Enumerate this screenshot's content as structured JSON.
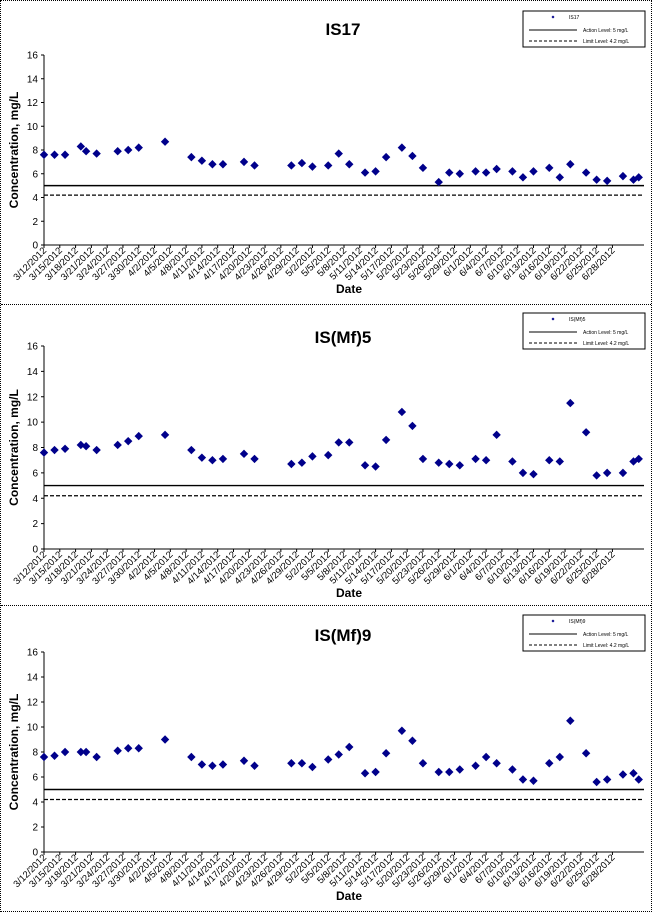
{
  "chart_data": [
    {
      "type": "scatter",
      "title": "IS17",
      "xlabel": "Date",
      "ylabel": "Concentration, mg/L",
      "ylim": [
        0,
        16
      ],
      "yticks": [
        "0",
        "2",
        "4",
        "6",
        "8",
        "10",
        "12",
        "14",
        "16"
      ],
      "xticks": [
        "3/12/2012",
        "3/15/2012",
        "3/18/2012",
        "3/21/2012",
        "3/24/2012",
        "3/27/2012",
        "3/30/2012",
        "4/2/2012",
        "4/5/2012",
        "4/8/2012",
        "4/11/2012",
        "4/14/2012",
        "4/17/2012",
        "4/20/2012",
        "4/23/2012",
        "4/26/2012",
        "4/29/2012",
        "5/2/2012",
        "5/5/2012",
        "5/8/2012",
        "5/11/2012",
        "5/14/2012",
        "5/17/2012",
        "5/20/2012",
        "5/23/2012",
        "5/26/2012",
        "5/29/2012",
        "6/1/2012",
        "6/4/2012",
        "6/7/2012",
        "6/10/2012",
        "6/13/2012",
        "6/16/2012",
        "6/19/2012",
        "6/22/2012",
        "6/25/2012",
        "6/28/2012"
      ],
      "legend": {
        "placement": "top-right",
        "entries": [
          "IS17",
          "Action Level: 5 mg/L",
          "Limit Level: 4.2 mg/L"
        ]
      },
      "lines": [
        {
          "name": "Action Level: 5 mg/L",
          "y": 5,
          "style": "solid"
        },
        {
          "name": "Limit Level: 4.2 mg/L",
          "y": 4.2,
          "style": "dashed"
        }
      ],
      "series": [
        {
          "name": "IS17",
          "points": [
            [
              "3/12/2012",
              7.6
            ],
            [
              "3/14/2012",
              7.6
            ],
            [
              "3/16/2012",
              7.6
            ],
            [
              "3/19/2012",
              8.3
            ],
            [
              "3/20/2012",
              7.9
            ],
            [
              "3/22/2012",
              7.7
            ],
            [
              "3/26/2012",
              7.9
            ],
            [
              "3/28/2012",
              8.0
            ],
            [
              "3/30/2012",
              8.2
            ],
            [
              "4/4/2012",
              8.7
            ],
            [
              "4/9/2012",
              7.4
            ],
            [
              "4/11/2012",
              7.1
            ],
            [
              "4/13/2012",
              6.8
            ],
            [
              "4/15/2012",
              6.8
            ],
            [
              "4/19/2012",
              7.0
            ],
            [
              "4/21/2012",
              6.7
            ],
            [
              "4/28/2012",
              6.7
            ],
            [
              "4/30/2012",
              6.9
            ],
            [
              "5/2/2012",
              6.6
            ],
            [
              "5/5/2012",
              6.7
            ],
            [
              "5/7/2012",
              7.7
            ],
            [
              "5/9/2012",
              6.8
            ],
            [
              "5/12/2012",
              6.1
            ],
            [
              "5/14/2012",
              6.2
            ],
            [
              "5/16/2012",
              7.4
            ],
            [
              "5/19/2012",
              8.2
            ],
            [
              "5/21/2012",
              7.5
            ],
            [
              "5/23/2012",
              6.5
            ],
            [
              "5/26/2012",
              5.3
            ],
            [
              "5/28/2012",
              6.1
            ],
            [
              "5/30/2012",
              6.0
            ],
            [
              "6/2/2012",
              6.2
            ],
            [
              "6/4/2012",
              6.1
            ],
            [
              "6/6/2012",
              6.4
            ],
            [
              "6/9/2012",
              6.2
            ],
            [
              "6/11/2012",
              5.7
            ],
            [
              "6/13/2012",
              6.2
            ],
            [
              "6/16/2012",
              6.5
            ],
            [
              "6/18/2012",
              5.7
            ],
            [
              "6/20/2012",
              6.8
            ],
            [
              "6/23/2012",
              6.1
            ],
            [
              "6/25/2012",
              5.5
            ],
            [
              "6/27/2012",
              5.4
            ],
            [
              "6/30/2012",
              5.8
            ],
            [
              "7/2/2012",
              5.5
            ],
            [
              "7/3/2012",
              5.7
            ]
          ]
        }
      ]
    },
    {
      "type": "scatter",
      "title": "IS(Mf)5",
      "xlabel": "Date",
      "ylabel": "Concentration, mg/L",
      "ylim": [
        0,
        16
      ],
      "yticks": [
        "0",
        "2",
        "4",
        "6",
        "8",
        "10",
        "12",
        "14",
        "16"
      ],
      "xticks": [
        "3/12/2012",
        "3/15/2012",
        "3/18/2012",
        "3/21/2012",
        "3/24/2012",
        "3/27/2012",
        "3/30/2012",
        "4/2/2012",
        "4/5/2012",
        "4/8/2012",
        "4/11/2012",
        "4/14/2012",
        "4/17/2012",
        "4/20/2012",
        "4/23/2012",
        "4/26/2012",
        "4/29/2012",
        "5/2/2012",
        "5/5/2012",
        "5/8/2012",
        "5/11/2012",
        "5/14/2012",
        "5/17/2012",
        "5/20/2012",
        "5/23/2012",
        "5/26/2012",
        "5/29/2012",
        "6/1/2012",
        "6/4/2012",
        "6/7/2012",
        "6/10/2012",
        "6/13/2012",
        "6/16/2012",
        "6/19/2012",
        "6/22/2012",
        "6/25/2012",
        "6/28/2012"
      ],
      "legend": {
        "placement": "top-right",
        "entries": [
          "IS(Mf)5",
          "Action Level: 5 mg/L",
          "Limit Level: 4.2 mg/L"
        ]
      },
      "lines": [
        {
          "name": "Action Level: 5 mg/L",
          "y": 5,
          "style": "solid"
        },
        {
          "name": "Limit Level: 4.2 mg/L",
          "y": 4.2,
          "style": "dashed"
        }
      ],
      "series": [
        {
          "name": "IS(Mf)5",
          "points": [
            [
              "3/12/2012",
              7.6
            ],
            [
              "3/14/2012",
              7.8
            ],
            [
              "3/16/2012",
              7.9
            ],
            [
              "3/19/2012",
              8.2
            ],
            [
              "3/20/2012",
              8.1
            ],
            [
              "3/22/2012",
              7.8
            ],
            [
              "3/26/2012",
              8.2
            ],
            [
              "3/28/2012",
              8.5
            ],
            [
              "3/30/2012",
              8.9
            ],
            [
              "4/4/2012",
              9.0
            ],
            [
              "4/9/2012",
              7.8
            ],
            [
              "4/11/2012",
              7.2
            ],
            [
              "4/13/2012",
              7.0
            ],
            [
              "4/15/2012",
              7.1
            ],
            [
              "4/19/2012",
              7.5
            ],
            [
              "4/21/2012",
              7.1
            ],
            [
              "4/28/2012",
              6.7
            ],
            [
              "4/30/2012",
              6.8
            ],
            [
              "5/2/2012",
              7.3
            ],
            [
              "5/5/2012",
              7.4
            ],
            [
              "5/7/2012",
              8.4
            ],
            [
              "5/9/2012",
              8.4
            ],
            [
              "5/12/2012",
              6.6
            ],
            [
              "5/14/2012",
              6.5
            ],
            [
              "5/16/2012",
              8.6
            ],
            [
              "5/19/2012",
              10.8
            ],
            [
              "5/21/2012",
              9.7
            ],
            [
              "5/23/2012",
              7.1
            ],
            [
              "5/26/2012",
              6.8
            ],
            [
              "5/28/2012",
              6.7
            ],
            [
              "5/30/2012",
              6.6
            ],
            [
              "6/2/2012",
              7.1
            ],
            [
              "6/4/2012",
              7.0
            ],
            [
              "6/6/2012",
              9.0
            ],
            [
              "6/9/2012",
              6.9
            ],
            [
              "6/11/2012",
              6.0
            ],
            [
              "6/13/2012",
              5.9
            ],
            [
              "6/16/2012",
              7.0
            ],
            [
              "6/18/2012",
              6.9
            ],
            [
              "6/20/2012",
              11.5
            ],
            [
              "6/23/2012",
              9.2
            ],
            [
              "6/25/2012",
              5.8
            ],
            [
              "6/27/2012",
              6.0
            ],
            [
              "6/30/2012",
              6.0
            ],
            [
              "7/2/2012",
              6.9
            ],
            [
              "7/3/2012",
              7.1
            ]
          ]
        }
      ]
    },
    {
      "type": "scatter",
      "title": "IS(Mf)9",
      "xlabel": "Date",
      "ylabel": "Concentration, mg/L",
      "ylim": [
        0,
        16
      ],
      "yticks": [
        "0",
        "2",
        "4",
        "6",
        "8",
        "10",
        "12",
        "14",
        "16"
      ],
      "xticks": [
        "3/12/2012",
        "3/15/2012",
        "3/18/2012",
        "3/21/2012",
        "3/24/2012",
        "3/27/2012",
        "3/30/2012",
        "4/2/2012",
        "4/5/2012",
        "4/8/2012",
        "4/11/2012",
        "4/14/2012",
        "4/17/2012",
        "4/20/2012",
        "4/23/2012",
        "4/26/2012",
        "4/29/2012",
        "5/2/2012",
        "5/5/2012",
        "5/8/2012",
        "5/11/2012",
        "5/14/2012",
        "5/17/2012",
        "5/20/2012",
        "5/23/2012",
        "5/26/2012",
        "5/29/2012",
        "6/1/2012",
        "6/4/2012",
        "6/7/2012",
        "6/10/2012",
        "6/13/2012",
        "6/16/2012",
        "6/19/2012",
        "6/22/2012",
        "6/25/2012",
        "6/28/2012"
      ],
      "legend": {
        "placement": "top-right",
        "entries": [
          "IS(Mf)9",
          "Action Level: 5 mg/L",
          "Limit Level: 4.2 mg/L"
        ]
      },
      "lines": [
        {
          "name": "Action Level: 5 mg/L",
          "y": 5,
          "style": "solid"
        },
        {
          "name": "Limit Level: 4.2 mg/L",
          "y": 4.2,
          "style": "dashed"
        }
      ],
      "series": [
        {
          "name": "IS(Mf)9",
          "points": [
            [
              "3/12/2012",
              7.6
            ],
            [
              "3/14/2012",
              7.7
            ],
            [
              "3/16/2012",
              8.0
            ],
            [
              "3/19/2012",
              8.0
            ],
            [
              "3/20/2012",
              8.0
            ],
            [
              "3/22/2012",
              7.6
            ],
            [
              "3/26/2012",
              8.1
            ],
            [
              "3/28/2012",
              8.3
            ],
            [
              "3/30/2012",
              8.3
            ],
            [
              "4/4/2012",
              9.0
            ],
            [
              "4/9/2012",
              7.6
            ],
            [
              "4/11/2012",
              7.0
            ],
            [
              "4/13/2012",
              6.9
            ],
            [
              "4/15/2012",
              7.0
            ],
            [
              "4/19/2012",
              7.3
            ],
            [
              "4/21/2012",
              6.9
            ],
            [
              "4/28/2012",
              7.1
            ],
            [
              "4/30/2012",
              7.1
            ],
            [
              "5/2/2012",
              6.8
            ],
            [
              "5/5/2012",
              7.4
            ],
            [
              "5/7/2012",
              7.8
            ],
            [
              "5/9/2012",
              8.4
            ],
            [
              "5/12/2012",
              6.3
            ],
            [
              "5/14/2012",
              6.4
            ],
            [
              "5/16/2012",
              7.9
            ],
            [
              "5/19/2012",
              9.7
            ],
            [
              "5/21/2012",
              8.9
            ],
            [
              "5/23/2012",
              7.1
            ],
            [
              "5/26/2012",
              6.4
            ],
            [
              "5/28/2012",
              6.4
            ],
            [
              "5/30/2012",
              6.6
            ],
            [
              "6/2/2012",
              6.9
            ],
            [
              "6/4/2012",
              7.6
            ],
            [
              "6/6/2012",
              7.1
            ],
            [
              "6/9/2012",
              6.6
            ],
            [
              "6/11/2012",
              5.8
            ],
            [
              "6/13/2012",
              5.7
            ],
            [
              "6/16/2012",
              7.1
            ],
            [
              "6/18/2012",
              7.6
            ],
            [
              "6/20/2012",
              10.5
            ],
            [
              "6/23/2012",
              7.9
            ],
            [
              "6/25/2012",
              5.6
            ],
            [
              "6/27/2012",
              5.8
            ],
            [
              "6/30/2012",
              6.2
            ],
            [
              "7/2/2012",
              6.3
            ],
            [
              "7/3/2012",
              5.8
            ]
          ]
        }
      ]
    }
  ],
  "colors": {
    "marker": "#00008b",
    "axis": "#000000",
    "text": "#000000"
  }
}
